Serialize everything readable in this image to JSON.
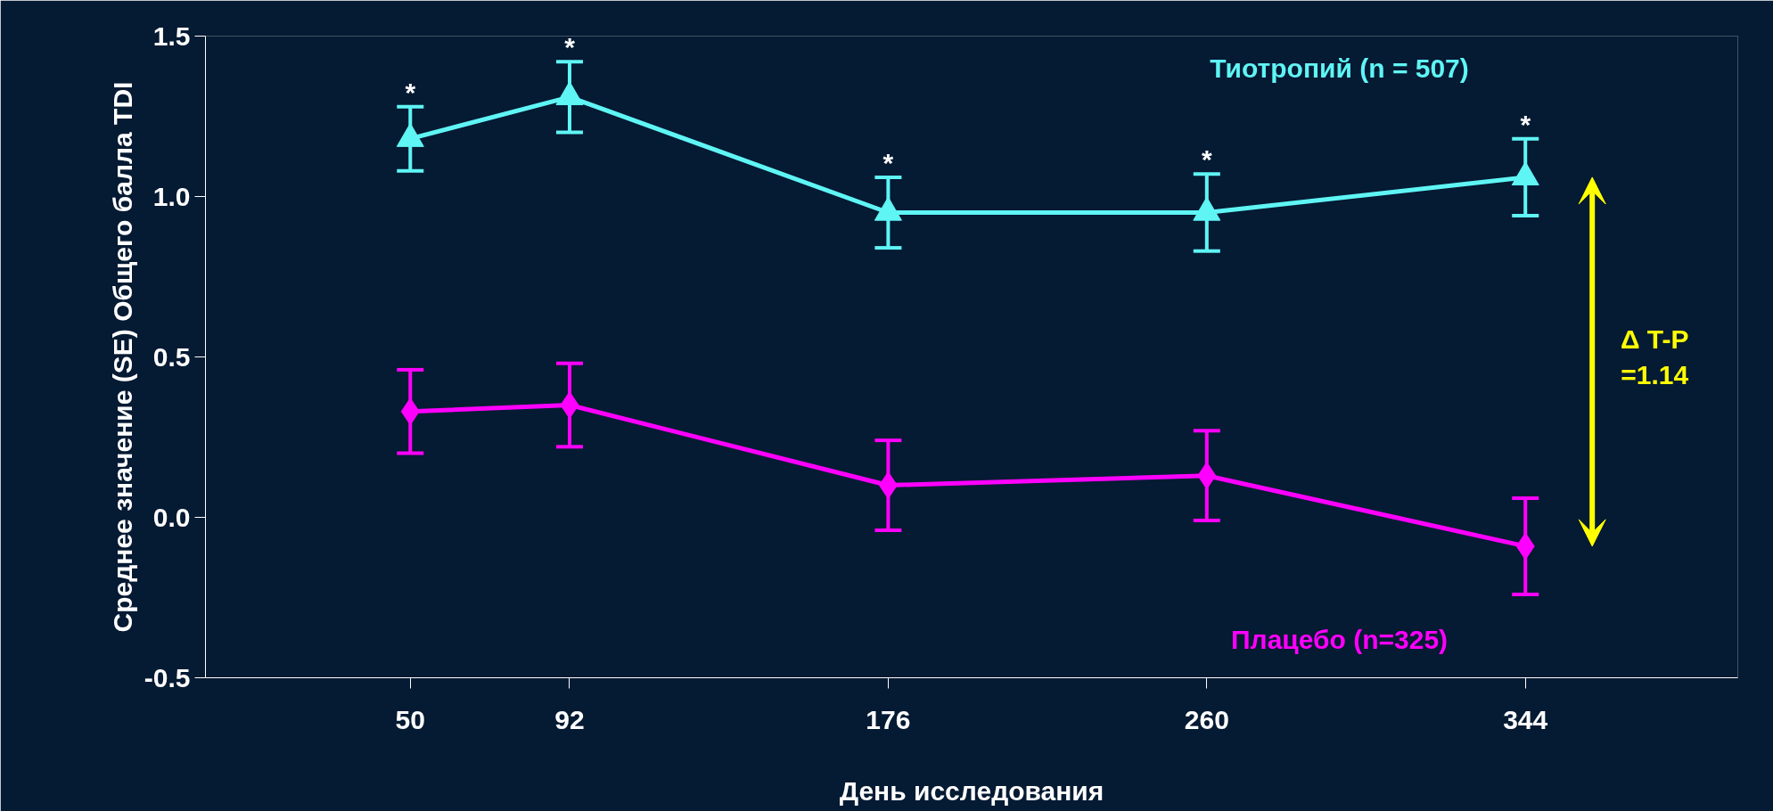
{
  "chart_data": {
    "type": "line",
    "xlabel": "День исследования",
    "ylabel": "Среднее значение (SE) Общего балла TDI",
    "x": [
      50,
      92,
      176,
      260,
      344
    ],
    "xlim": [
      -4,
      400
    ],
    "xticks": [
      50,
      92,
      176,
      260,
      344
    ],
    "ylim": [
      -0.5,
      1.5
    ],
    "yticks": [
      -0.5,
      {
        "value": 0,
        "label": "0.0"
      },
      0.5,
      {
        "value": 1,
        "label": "1.0"
      },
      1.5
    ],
    "grid": false,
    "line_style": "solid",
    "series": [
      {
        "name": "Тиотропий (n = 507)",
        "color": "#5ff5f5",
        "marker": "triangle",
        "values": [
          1.18,
          1.31,
          0.95,
          0.95,
          1.06
        ],
        "errors": [
          0.1,
          0.11,
          0.11,
          0.12,
          0.12
        ],
        "value_labels": [
          "*",
          "*",
          "*",
          "*",
          "*"
        ]
      },
      {
        "name": "Плацебо (n=325)",
        "color": "#ff00ff",
        "marker": "diamond",
        "values": [
          0.33,
          0.35,
          0.1,
          0.13,
          -0.09
        ],
        "errors": [
          0.13,
          0.13,
          0.14,
          0.14,
          0.15
        ]
      }
    ],
    "annotations": [
      "Δ T-P =1.14"
    ]
  }
}
